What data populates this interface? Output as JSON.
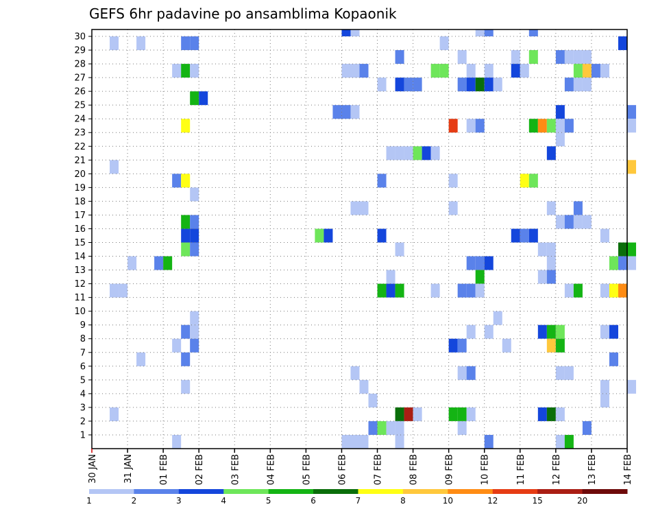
{
  "chart_data": {
    "type": "heatmap",
    "title": "GEFS 6hr padavine po ansamblima Kopaonik",
    "xlabel": "",
    "ylabel": "",
    "x_ticks": [
      "30 JAN",
      "31 JAN",
      "01 FEB",
      "02 FEB",
      "03 FEB",
      "04 FEB",
      "05 FEB",
      "06 FEB",
      "07 FEB",
      "08 FEB",
      "09 FEB",
      "10 FEB",
      "11 FEB",
      "12 FEB",
      "13 FEB",
      "14 FEB"
    ],
    "x_range_days": [
      0,
      15
    ],
    "x_step_days": 0.25,
    "y_ticks": [
      1,
      2,
      3,
      4,
      5,
      6,
      7,
      8,
      9,
      10,
      11,
      12,
      13,
      14,
      15,
      16,
      17,
      18,
      19,
      20,
      21,
      22,
      23,
      24,
      25,
      26,
      27,
      28,
      29,
      30
    ],
    "y_range": [
      0,
      30
    ],
    "grid": true,
    "legend": {
      "position": "bottom",
      "labels": [
        "1",
        "2",
        "3",
        "4",
        "5",
        "6",
        "7",
        "8",
        "10",
        "12",
        "15",
        "20"
      ],
      "colors": [
        "#b4c6f5",
        "#5a82ea",
        "#1446dc",
        "#6ee65a",
        "#14b414",
        "#0a6e0a",
        "#ffff14",
        "#ffc83c",
        "#ff8c14",
        "#e63c14",
        "#aa1e14",
        "#6e0a0a"
      ]
    },
    "colors_by_level": {
      "1": "#b4c6f5",
      "2": "#5a82ea",
      "3": "#1446dc",
      "4": "#6ee65a",
      "5": "#14b414",
      "6": "#0a6e0a",
      "7": "#ffff14",
      "8": "#ffc83c",
      "10": "#ff8c14",
      "12": "#e63c14",
      "15": "#aa1e14"
    },
    "cells_note": "each cell = [x_day_offset_from_30_JAN, ensemble_member, precipitation_level]",
    "cells": [
      [
        7.0,
        30,
        3
      ],
      [
        7.25,
        30,
        1
      ],
      [
        10.75,
        30,
        1
      ],
      [
        11.0,
        30,
        2
      ],
      [
        12.25,
        30,
        2
      ],
      [
        0.5,
        29,
        1
      ],
      [
        1.25,
        29,
        1
      ],
      [
        2.5,
        29,
        2
      ],
      [
        2.75,
        29,
        2
      ],
      [
        9.75,
        29,
        1
      ],
      [
        14.75,
        29,
        3
      ],
      [
        8.5,
        28,
        2
      ],
      [
        10.25,
        28,
        1
      ],
      [
        11.75,
        28,
        1
      ],
      [
        12.25,
        28,
        4
      ],
      [
        13.0,
        28,
        2
      ],
      [
        13.25,
        28,
        1
      ],
      [
        13.5,
        28,
        1
      ],
      [
        13.75,
        28,
        1
      ],
      [
        2.25,
        27,
        1
      ],
      [
        2.5,
        27,
        5
      ],
      [
        2.75,
        27,
        1
      ],
      [
        7.0,
        27,
        1
      ],
      [
        7.25,
        27,
        1
      ],
      [
        7.5,
        27,
        2
      ],
      [
        9.5,
        27,
        4
      ],
      [
        9.75,
        27,
        4
      ],
      [
        10.5,
        27,
        1
      ],
      [
        11.0,
        27,
        1
      ],
      [
        11.75,
        27,
        3
      ],
      [
        12.0,
        27,
        1
      ],
      [
        13.5,
        27,
        4
      ],
      [
        13.75,
        27,
        8
      ],
      [
        14.0,
        27,
        2
      ],
      [
        14.25,
        27,
        1
      ],
      [
        8.0,
        26,
        1
      ],
      [
        8.5,
        26,
        3
      ],
      [
        8.75,
        26,
        2
      ],
      [
        9.0,
        26,
        2
      ],
      [
        10.25,
        26,
        2
      ],
      [
        10.5,
        26,
        3
      ],
      [
        10.75,
        26,
        6
      ],
      [
        11.0,
        26,
        3
      ],
      [
        11.25,
        26,
        1
      ],
      [
        13.25,
        26,
        2
      ],
      [
        13.5,
        26,
        1
      ],
      [
        13.75,
        26,
        1
      ],
      [
        2.75,
        25,
        5
      ],
      [
        3.0,
        25,
        3
      ],
      [
        6.75,
        24,
        2
      ],
      [
        7.0,
        24,
        2
      ],
      [
        7.25,
        24,
        1
      ],
      [
        13.0,
        24,
        3
      ],
      [
        15.0,
        24,
        2
      ],
      [
        2.5,
        23,
        7
      ],
      [
        10.0,
        23,
        12
      ],
      [
        10.5,
        23,
        1
      ],
      [
        10.75,
        23,
        2
      ],
      [
        12.25,
        23,
        5
      ],
      [
        12.5,
        23,
        10
      ],
      [
        12.75,
        23,
        4
      ],
      [
        13.0,
        23,
        1
      ],
      [
        13.25,
        23,
        2
      ],
      [
        15.0,
        23,
        1
      ],
      [
        13.0,
        22,
        1
      ],
      [
        8.25,
        21,
        1
      ],
      [
        8.5,
        21,
        1
      ],
      [
        8.75,
        21,
        1
      ],
      [
        9.0,
        21,
        4
      ],
      [
        9.25,
        21,
        3
      ],
      [
        9.5,
        21,
        1
      ],
      [
        12.75,
        21,
        3
      ],
      [
        0.5,
        20,
        1
      ],
      [
        15.0,
        20,
        8
      ],
      [
        2.25,
        19,
        2
      ],
      [
        2.5,
        19,
        7
      ],
      [
        8.0,
        19,
        2
      ],
      [
        10.0,
        19,
        1
      ],
      [
        12.0,
        19,
        7
      ],
      [
        12.25,
        19,
        4
      ],
      [
        2.75,
        18,
        1
      ],
      [
        7.25,
        17,
        1
      ],
      [
        7.5,
        17,
        1
      ],
      [
        10.0,
        17,
        1
      ],
      [
        12.75,
        17,
        1
      ],
      [
        13.5,
        17,
        2
      ],
      [
        2.5,
        16,
        5
      ],
      [
        2.75,
        16,
        2
      ],
      [
        13.0,
        16,
        1
      ],
      [
        13.25,
        16,
        2
      ],
      [
        13.5,
        16,
        1
      ],
      [
        13.75,
        16,
        1
      ],
      [
        2.5,
        15,
        3
      ],
      [
        2.75,
        15,
        3
      ],
      [
        6.25,
        15,
        4
      ],
      [
        6.5,
        15,
        3
      ],
      [
        8.0,
        15,
        3
      ],
      [
        11.75,
        15,
        3
      ],
      [
        12.0,
        15,
        2
      ],
      [
        12.25,
        15,
        3
      ],
      [
        14.25,
        15,
        1
      ],
      [
        2.5,
        14,
        4
      ],
      [
        2.75,
        14,
        2
      ],
      [
        8.5,
        14,
        1
      ],
      [
        12.5,
        14,
        1
      ],
      [
        12.75,
        14,
        1
      ],
      [
        14.75,
        14,
        6
      ],
      [
        15.0,
        14,
        5
      ],
      [
        1.0,
        13,
        1
      ],
      [
        1.75,
        13,
        2
      ],
      [
        2.0,
        13,
        5
      ],
      [
        10.5,
        13,
        2
      ],
      [
        10.75,
        13,
        2
      ],
      [
        11.0,
        13,
        3
      ],
      [
        12.75,
        13,
        1
      ],
      [
        14.5,
        13,
        4
      ],
      [
        14.75,
        13,
        2
      ],
      [
        15.0,
        13,
        1
      ],
      [
        8.25,
        12,
        1
      ],
      [
        10.75,
        12,
        5
      ],
      [
        12.5,
        12,
        1
      ],
      [
        12.75,
        12,
        2
      ],
      [
        0.5,
        11,
        1
      ],
      [
        0.75,
        11,
        1
      ],
      [
        8.0,
        11,
        5
      ],
      [
        8.25,
        11,
        3
      ],
      [
        8.5,
        11,
        5
      ],
      [
        9.5,
        11,
        1
      ],
      [
        10.25,
        11,
        2
      ],
      [
        10.5,
        11,
        2
      ],
      [
        10.75,
        11,
        1
      ],
      [
        13.25,
        11,
        1
      ],
      [
        13.5,
        11,
        5
      ],
      [
        14.25,
        11,
        1
      ],
      [
        14.5,
        11,
        7
      ],
      [
        14.75,
        11,
        10
      ],
      [
        11.25,
        9,
        1
      ],
      [
        2.75,
        9,
        1
      ],
      [
        2.5,
        8,
        2
      ],
      [
        2.75,
        8,
        1
      ],
      [
        10.5,
        8,
        1
      ],
      [
        11.0,
        8,
        1
      ],
      [
        12.5,
        8,
        3
      ],
      [
        12.75,
        8,
        5
      ],
      [
        13.0,
        8,
        4
      ],
      [
        14.25,
        8,
        1
      ],
      [
        14.5,
        8,
        3
      ],
      [
        2.25,
        7,
        1
      ],
      [
        2.75,
        7,
        2
      ],
      [
        10.0,
        7,
        3
      ],
      [
        10.25,
        7,
        2
      ],
      [
        11.5,
        7,
        1
      ],
      [
        12.75,
        7,
        8
      ],
      [
        13.0,
        7,
        5
      ],
      [
        1.25,
        6,
        1
      ],
      [
        2.5,
        6,
        2
      ],
      [
        14.5,
        6,
        2
      ],
      [
        7.25,
        5,
        1
      ],
      [
        10.25,
        5,
        1
      ],
      [
        10.5,
        5,
        2
      ],
      [
        13.0,
        5,
        1
      ],
      [
        13.25,
        5,
        1
      ],
      [
        2.5,
        4,
        1
      ],
      [
        7.5,
        4,
        1
      ],
      [
        14.25,
        4,
        1
      ],
      [
        15.0,
        4,
        1
      ],
      [
        7.75,
        3,
        1
      ],
      [
        14.25,
        3,
        1
      ],
      [
        0.5,
        2,
        1
      ],
      [
        8.5,
        2,
        6
      ],
      [
        8.75,
        2,
        15
      ],
      [
        9.0,
        2,
        1
      ],
      [
        10.0,
        2,
        5
      ],
      [
        10.25,
        2,
        5
      ],
      [
        10.5,
        2,
        1
      ],
      [
        12.5,
        2,
        3
      ],
      [
        12.75,
        2,
        6
      ],
      [
        13.0,
        2,
        1
      ],
      [
        7.75,
        1,
        2
      ],
      [
        8.0,
        1,
        4
      ],
      [
        8.25,
        1,
        1
      ],
      [
        8.5,
        1,
        1
      ],
      [
        10.25,
        1,
        1
      ],
      [
        13.75,
        1,
        2
      ],
      [
        2.25,
        0,
        1
      ],
      [
        7.0,
        0,
        1
      ],
      [
        7.25,
        0,
        1
      ],
      [
        7.5,
        0,
        1
      ],
      [
        8.5,
        0,
        1
      ],
      [
        11.0,
        0,
        2
      ],
      [
        13.0,
        0,
        1
      ],
      [
        13.25,
        0,
        5
      ]
    ]
  }
}
